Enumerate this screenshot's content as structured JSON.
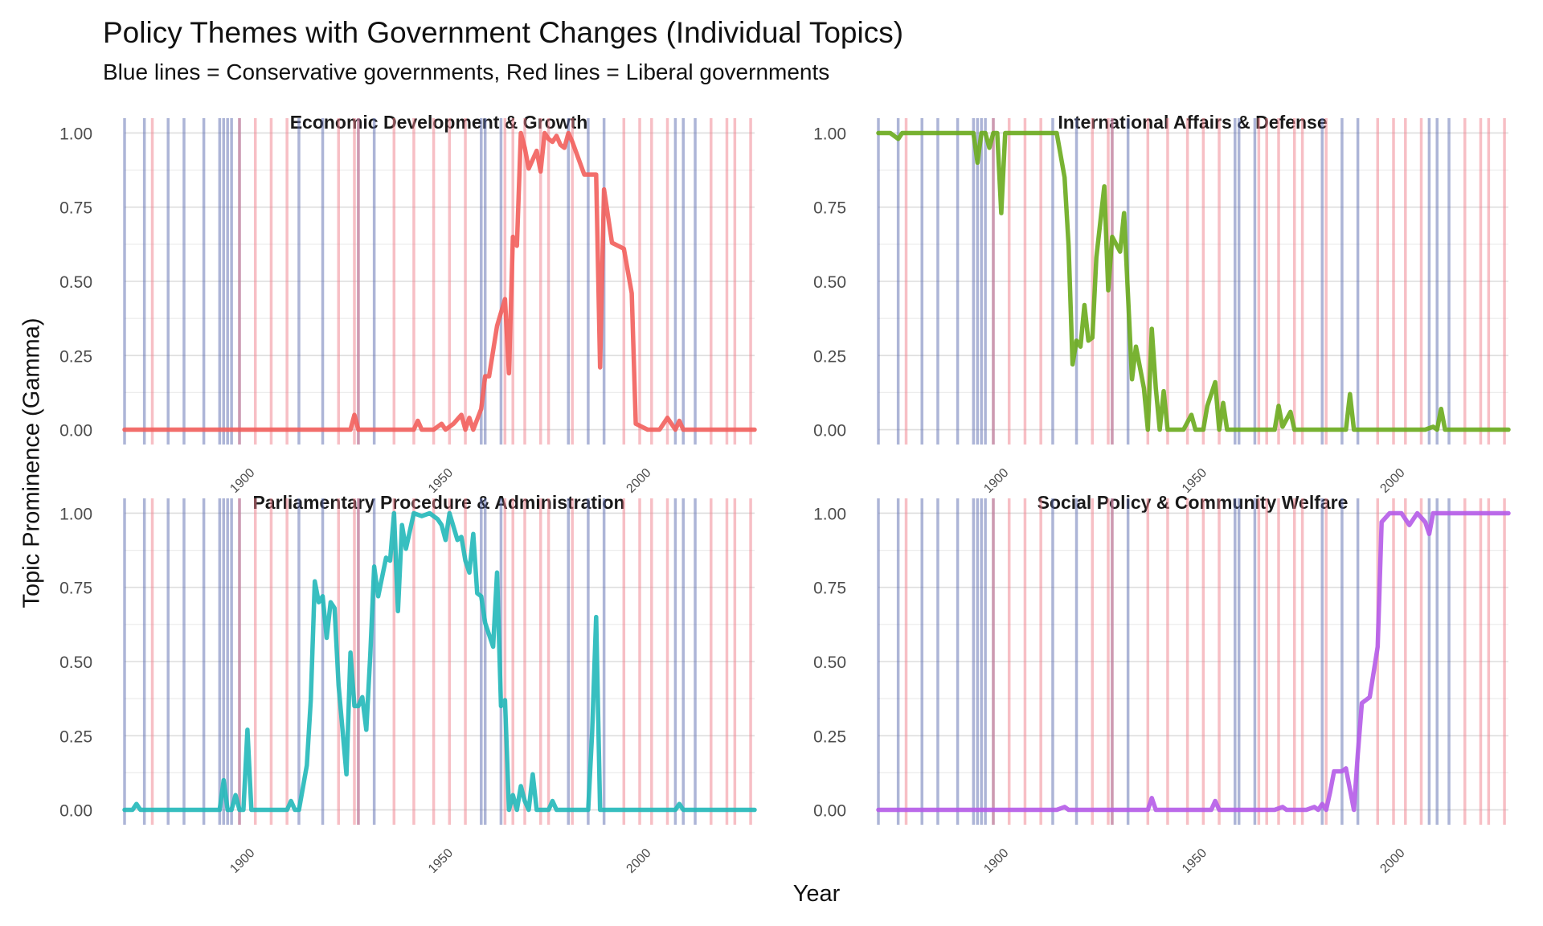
{
  "chart_data": {
    "type": "line",
    "title": "Policy Themes with Government Changes (Individual Topics)",
    "subtitle": "Blue lines = Conservative governments, Red lines = Liberal governments",
    "xlabel": "Year",
    "ylabel": "Topic Prominence (Gamma)",
    "xlim": [
      1867,
      2026
    ],
    "ylim": [
      -0.05,
      1.05
    ],
    "x_ticks": [
      1900,
      1950,
      2000
    ],
    "y_ticks": [
      "0.00",
      "0.25",
      "0.50",
      "0.75",
      "1.00"
    ],
    "grid": true,
    "government_changes": {
      "conservative_years": [
        1867,
        1872,
        1878,
        1882,
        1887,
        1891,
        1892,
        1893,
        1894,
        1896,
        1911,
        1917,
        1926,
        1930,
        1957,
        1958,
        1962,
        1979,
        1984,
        1988,
        2006,
        2008,
        2011
      ],
      "liberal_years": [
        1874,
        1896,
        1900,
        1904,
        1908,
        1921,
        1925,
        1926,
        1935,
        1940,
        1945,
        1949,
        1953,
        1963,
        1965,
        1968,
        1972,
        1974,
        1980,
        1993,
        1997,
        2000,
        2004,
        2015,
        2019,
        2021,
        2025
      ],
      "conservative_color": "#5b6bb0",
      "liberal_color": "#f07f8c"
    },
    "panels": [
      {
        "name": "Economic Development & Growth",
        "color": "#f25f5c",
        "points": [
          [
            1867,
            0
          ],
          [
            1870,
            0
          ],
          [
            1880,
            0
          ],
          [
            1890,
            0
          ],
          [
            1900,
            0
          ],
          [
            1910,
            0
          ],
          [
            1920,
            0
          ],
          [
            1924,
            0
          ],
          [
            1925,
            0.05
          ],
          [
            1926,
            0
          ],
          [
            1930,
            0
          ],
          [
            1935,
            0
          ],
          [
            1940,
            0
          ],
          [
            1941,
            0.03
          ],
          [
            1942,
            0
          ],
          [
            1945,
            0
          ],
          [
            1947,
            0.02
          ],
          [
            1948,
            0
          ],
          [
            1950,
            0.02
          ],
          [
            1952,
            0.05
          ],
          [
            1953,
            0
          ],
          [
            1954,
            0.04
          ],
          [
            1955,
            0
          ],
          [
            1957,
            0.07
          ],
          [
            1958,
            0.18
          ],
          [
            1959,
            0.18
          ],
          [
            1961,
            0.35
          ],
          [
            1963,
            0.44
          ],
          [
            1964,
            0.19
          ],
          [
            1965,
            0.65
          ],
          [
            1966,
            0.62
          ],
          [
            1967,
            1.0
          ],
          [
            1968,
            0.95
          ],
          [
            1969,
            0.88
          ],
          [
            1971,
            0.94
          ],
          [
            1972,
            0.87
          ],
          [
            1973,
            1.0
          ],
          [
            1974,
            0.98
          ],
          [
            1975,
            0.97
          ],
          [
            1976,
            0.99
          ],
          [
            1977,
            0.96
          ],
          [
            1978,
            0.95
          ],
          [
            1979,
            1.0
          ],
          [
            1980,
            0.97
          ],
          [
            1983,
            0.86
          ],
          [
            1986,
            0.86
          ],
          [
            1987,
            0.21
          ],
          [
            1988,
            0.81
          ],
          [
            1990,
            0.63
          ],
          [
            1993,
            0.61
          ],
          [
            1995,
            0.46
          ],
          [
            1996,
            0.02
          ],
          [
            1999,
            0.0
          ],
          [
            2002,
            0.0
          ],
          [
            2004,
            0.04
          ],
          [
            2006,
            0.0
          ],
          [
            2007,
            0.03
          ],
          [
            2008,
            0.0
          ],
          [
            2015,
            0.0
          ],
          [
            2026,
            0.0
          ]
        ]
      },
      {
        "name": "International Affairs & Defense",
        "color": "#6aab1d",
        "points": [
          [
            1867,
            1.0
          ],
          [
            1870,
            1.0
          ],
          [
            1872,
            0.98
          ],
          [
            1873,
            1.0
          ],
          [
            1880,
            1.0
          ],
          [
            1890,
            1.0
          ],
          [
            1891,
            1.0
          ],
          [
            1892,
            0.9
          ],
          [
            1893,
            1.0
          ],
          [
            1894,
            1.0
          ],
          [
            1895,
            0.95
          ],
          [
            1896,
            1.0
          ],
          [
            1897,
            1.0
          ],
          [
            1898,
            0.73
          ],
          [
            1899,
            1.0
          ],
          [
            1905,
            1.0
          ],
          [
            1907,
            1.0
          ],
          [
            1910,
            1.0
          ],
          [
            1912,
            1.0
          ],
          [
            1914,
            0.85
          ],
          [
            1915,
            0.62
          ],
          [
            1916,
            0.22
          ],
          [
            1917,
            0.3
          ],
          [
            1918,
            0.28
          ],
          [
            1919,
            0.42
          ],
          [
            1920,
            0.3
          ],
          [
            1921,
            0.31
          ],
          [
            1922,
            0.58
          ],
          [
            1924,
            0.82
          ],
          [
            1925,
            0.47
          ],
          [
            1926,
            0.65
          ],
          [
            1928,
            0.6
          ],
          [
            1929,
            0.73
          ],
          [
            1931,
            0.17
          ],
          [
            1932,
            0.28
          ],
          [
            1934,
            0.14
          ],
          [
            1935,
            0.0
          ],
          [
            1936,
            0.34
          ],
          [
            1937,
            0.14
          ],
          [
            1938,
            0.0
          ],
          [
            1939,
            0.13
          ],
          [
            1940,
            0.0
          ],
          [
            1944,
            0.0
          ],
          [
            1946,
            0.05
          ],
          [
            1947,
            0.0
          ],
          [
            1949,
            0.0
          ],
          [
            1950,
            0.08
          ],
          [
            1952,
            0.16
          ],
          [
            1953,
            0.0
          ],
          [
            1954,
            0.09
          ],
          [
            1955,
            0.0
          ],
          [
            1957,
            0.0
          ],
          [
            1959,
            0.0
          ],
          [
            1960,
            0.0
          ],
          [
            1965,
            0.0
          ],
          [
            1967,
            0.0
          ],
          [
            1968,
            0.08
          ],
          [
            1969,
            0.01
          ],
          [
            1971,
            0.06
          ],
          [
            1972,
            0.0
          ],
          [
            1980,
            0.0
          ],
          [
            1985,
            0.0
          ],
          [
            1986,
            0.12
          ],
          [
            1987,
            0.0
          ],
          [
            1995,
            0.0
          ],
          [
            2005,
            0.0
          ],
          [
            2007,
            0.01
          ],
          [
            2008,
            0.0
          ],
          [
            2009,
            0.07
          ],
          [
            2010,
            0.0
          ],
          [
            2020,
            0.0
          ],
          [
            2026,
            0.0
          ]
        ]
      },
      {
        "name": "Parliamentary Procedure & Administration",
        "color": "#22b8b9",
        "points": [
          [
            1867,
            0
          ],
          [
            1869,
            0
          ],
          [
            1870,
            0.02
          ],
          [
            1871,
            0
          ],
          [
            1880,
            0
          ],
          [
            1889,
            0
          ],
          [
            1891,
            0
          ],
          [
            1892,
            0.1
          ],
          [
            1893,
            0
          ],
          [
            1894,
            0
          ],
          [
            1895,
            0.05
          ],
          [
            1896,
            0
          ],
          [
            1897,
            0
          ],
          [
            1898,
            0.27
          ],
          [
            1899,
            0.0
          ],
          [
            1900,
            0
          ],
          [
            1905,
            0
          ],
          [
            1908,
            0
          ],
          [
            1909,
            0.03
          ],
          [
            1910,
            0
          ],
          [
            1911,
            0
          ],
          [
            1913,
            0.15
          ],
          [
            1914,
            0.37
          ],
          [
            1915,
            0.77
          ],
          [
            1916,
            0.7
          ],
          [
            1917,
            0.72
          ],
          [
            1918,
            0.58
          ],
          [
            1919,
            0.7
          ],
          [
            1920,
            0.68
          ],
          [
            1921,
            0.42
          ],
          [
            1923,
            0.12
          ],
          [
            1924,
            0.53
          ],
          [
            1925,
            0.35
          ],
          [
            1926,
            0.35
          ],
          [
            1927,
            0.38
          ],
          [
            1928,
            0.27
          ],
          [
            1929,
            0.52
          ],
          [
            1930,
            0.82
          ],
          [
            1931,
            0.72
          ],
          [
            1933,
            0.85
          ],
          [
            1934,
            0.84
          ],
          [
            1935,
            1.0
          ],
          [
            1936,
            0.67
          ],
          [
            1937,
            0.96
          ],
          [
            1938,
            0.88
          ],
          [
            1940,
            1.0
          ],
          [
            1942,
            0.99
          ],
          [
            1944,
            1.0
          ],
          [
            1946,
            0.98
          ],
          [
            1947,
            0.96
          ],
          [
            1948,
            0.91
          ],
          [
            1949,
            1.0
          ],
          [
            1951,
            0.91
          ],
          [
            1952,
            0.92
          ],
          [
            1953,
            0.84
          ],
          [
            1954,
            0.8
          ],
          [
            1955,
            0.93
          ],
          [
            1956,
            0.73
          ],
          [
            1957,
            0.72
          ],
          [
            1958,
            0.63
          ],
          [
            1960,
            0.55
          ],
          [
            1961,
            0.8
          ],
          [
            1962,
            0.35
          ],
          [
            1963,
            0.37
          ],
          [
            1964,
            0.0
          ],
          [
            1965,
            0.05
          ],
          [
            1966,
            0.0
          ],
          [
            1967,
            0.08
          ],
          [
            1968,
            0.03
          ],
          [
            1969,
            0.0
          ],
          [
            1970,
            0.12
          ],
          [
            1971,
            0.0
          ],
          [
            1974,
            0.0
          ],
          [
            1975,
            0.03
          ],
          [
            1976,
            0.0
          ],
          [
            1982,
            0.0
          ],
          [
            1984,
            0.0
          ],
          [
            1985,
            0.26
          ],
          [
            1986,
            0.65
          ],
          [
            1987,
            0.0
          ],
          [
            1990,
            0.0
          ],
          [
            2000,
            0.0
          ],
          [
            2006,
            0.0
          ],
          [
            2007,
            0.02
          ],
          [
            2008,
            0.0
          ],
          [
            2026,
            0.0
          ]
        ]
      },
      {
        "name": "Social Policy & Community Welfare",
        "color": "#b55be8",
        "points": [
          [
            1867,
            0
          ],
          [
            1880,
            0
          ],
          [
            1900,
            0
          ],
          [
            1912,
            0
          ],
          [
            1914,
            0.01
          ],
          [
            1915,
            0
          ],
          [
            1935,
            0
          ],
          [
            1936,
            0.04
          ],
          [
            1937,
            0
          ],
          [
            1951,
            0
          ],
          [
            1952,
            0.03
          ],
          [
            1953,
            0
          ],
          [
            1960,
            0
          ],
          [
            1967,
            0
          ],
          [
            1969,
            0.01
          ],
          [
            1970,
            0
          ],
          [
            1975,
            0
          ],
          [
            1977,
            0.01
          ],
          [
            1978,
            0
          ],
          [
            1979,
            0.02
          ],
          [
            1980,
            0.0
          ],
          [
            1981,
            0.06
          ],
          [
            1982,
            0.13
          ],
          [
            1984,
            0.13
          ],
          [
            1985,
            0.14
          ],
          [
            1987,
            0.0
          ],
          [
            1988,
            0.19
          ],
          [
            1989,
            0.36
          ],
          [
            1991,
            0.38
          ],
          [
            1993,
            0.55
          ],
          [
            1994,
            0.97
          ],
          [
            1996,
            1.0
          ],
          [
            1999,
            1.0
          ],
          [
            2001,
            0.96
          ],
          [
            2003,
            1.0
          ],
          [
            2005,
            0.97
          ],
          [
            2006,
            0.93
          ],
          [
            2007,
            1.0
          ],
          [
            2010,
            1.0
          ],
          [
            2020,
            1.0
          ],
          [
            2026,
            1.0
          ]
        ]
      }
    ]
  }
}
